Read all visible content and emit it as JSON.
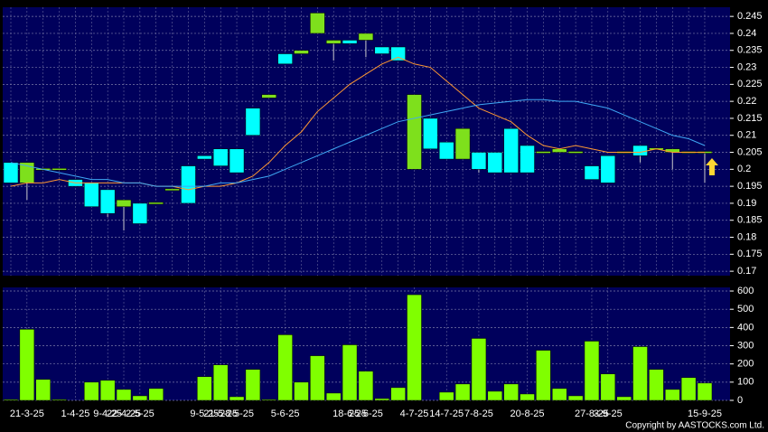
{
  "chart_data": [
    {
      "type": "candlestick",
      "categories": [
        null,
        "21-3-25",
        null,
        null,
        "1-4-25",
        null,
        "9-4-25",
        "22-4-25",
        "2-5-25",
        null,
        null,
        null,
        "9-5-25",
        "21-5-25",
        "28-5-25",
        null,
        null,
        "5-6-25",
        null,
        null,
        null,
        "18-6-25",
        "25-6-25",
        null,
        null,
        "4-7-25",
        null,
        "14-7-25",
        null,
        "7-8-25",
        null,
        null,
        "20-8-25",
        null,
        null,
        null,
        "27-8-25",
        "3-9-25",
        null,
        null,
        null,
        null,
        null,
        "15-9-25"
      ],
      "open": [
        0.202,
        0.196,
        0.2,
        0.2,
        0.197,
        0.196,
        0.194,
        0.189,
        0.19,
        0.19,
        0.194,
        0.201,
        0.204,
        0.206,
        0.206,
        0.218,
        0.221,
        0.234,
        0.234,
        0.24,
        0.237,
        0.238,
        0.238,
        0.236,
        0.236,
        0.2,
        0.215,
        0.208,
        0.203,
        0.205,
        0.205,
        0.212,
        0.207,
        0.205,
        0.205,
        0.205,
        0.201,
        0.204,
        0.205,
        0.207,
        0.206,
        0.205,
        0.205,
        0.205
      ],
      "high": [
        0.202,
        0.202,
        0.2,
        0.2,
        0.197,
        0.196,
        0.194,
        0.191,
        0.19,
        0.19,
        0.194,
        0.201,
        0.204,
        0.206,
        0.206,
        0.218,
        0.222,
        0.234,
        0.235,
        0.246,
        0.238,
        0.238,
        0.24,
        0.236,
        0.236,
        0.222,
        0.215,
        0.208,
        0.212,
        0.205,
        0.205,
        0.212,
        0.207,
        0.205,
        0.206,
        0.205,
        0.201,
        0.204,
        0.205,
        0.207,
        0.206,
        0.206,
        0.205,
        0.205
      ],
      "low": [
        0.196,
        0.191,
        0.2,
        0.2,
        0.195,
        0.189,
        0.186,
        0.182,
        0.184,
        0.19,
        0.194,
        0.19,
        0.203,
        0.201,
        0.199,
        0.21,
        0.221,
        0.231,
        0.234,
        0.24,
        0.232,
        0.237,
        0.233,
        0.234,
        0.232,
        0.2,
        0.206,
        0.203,
        0.203,
        0.199,
        0.199,
        0.199,
        0.199,
        0.205,
        0.205,
        0.205,
        0.197,
        0.196,
        0.205,
        0.202,
        0.206,
        0.2,
        0.205,
        0.196
      ],
      "close": [
        0.196,
        0.202,
        0.2,
        0.2,
        0.195,
        0.189,
        0.187,
        0.191,
        0.184,
        0.19,
        0.194,
        0.19,
        0.203,
        0.201,
        0.199,
        0.21,
        0.222,
        0.231,
        0.235,
        0.246,
        0.238,
        0.237,
        0.24,
        0.234,
        0.232,
        0.222,
        0.206,
        0.203,
        0.212,
        0.2,
        0.199,
        0.199,
        0.199,
        0.205,
        0.206,
        0.205,
        0.197,
        0.196,
        0.205,
        0.204,
        0.206,
        0.206,
        0.205,
        0.205
      ],
      "up_color": "#7ee01c",
      "down_color": "#00ffff",
      "series": [
        {
          "color": "#ff9933",
          "values": [
            0.195,
            0.196,
            0.196,
            0.197,
            0.196,
            0.196,
            0.196,
            0.196,
            0.196,
            0.195,
            0.195,
            0.194,
            0.195,
            0.195,
            0.196,
            0.198,
            0.202,
            0.207,
            0.211,
            0.217,
            0.221,
            0.225,
            0.228,
            0.231,
            0.233,
            0.231,
            0.23,
            0.226,
            0.222,
            0.218,
            0.216,
            0.214,
            0.21,
            0.207,
            0.206,
            0.207,
            0.206,
            0.205,
            0.205,
            0.205,
            0.206,
            0.205,
            0.205,
            0.205
          ]
        },
        {
          "color": "#3fa9f5",
          "values": [
            0.202,
            0.201,
            0.2,
            0.199,
            0.198,
            0.197,
            0.197,
            0.196,
            0.196,
            0.195,
            0.195,
            0.195,
            0.195,
            0.196,
            0.196,
            0.197,
            0.198,
            0.2,
            0.202,
            0.204,
            0.206,
            0.208,
            0.21,
            0.212,
            0.214,
            0.215,
            0.216,
            0.217,
            0.218,
            0.219,
            0.2195,
            0.22,
            0.2205,
            0.2205,
            0.22,
            0.22,
            0.219,
            0.218,
            0.216,
            0.214,
            0.212,
            0.21,
            0.209,
            0.207
          ]
        }
      ],
      "ylim": [
        0.1687,
        0.2477
      ],
      "yticks": [
        0.17,
        0.175,
        0.18,
        0.185,
        0.19,
        0.195,
        0.2,
        0.205,
        0.21,
        0.215,
        0.22,
        0.225,
        0.23,
        0.235,
        0.24,
        0.245
      ],
      "grid": true
    },
    {
      "type": "bar",
      "values": [
        5,
        390,
        115,
        5,
        0,
        100,
        110,
        60,
        25,
        65,
        0,
        0,
        130,
        195,
        20,
        170,
        5,
        360,
        100,
        245,
        40,
        305,
        160,
        10,
        70,
        580,
        0,
        45,
        90,
        340,
        50,
        90,
        35,
        275,
        65,
        25,
        325,
        145,
        20,
        295,
        170,
        60,
        125,
        95
      ],
      "color": "#80ff00",
      "ylim": [
        0,
        620
      ],
      "yticks": [
        0,
        100,
        200,
        300,
        400,
        500,
        600
      ],
      "grid": true,
      "annotation": "Copyright by AASTOCKS.com Ltd."
    }
  ]
}
